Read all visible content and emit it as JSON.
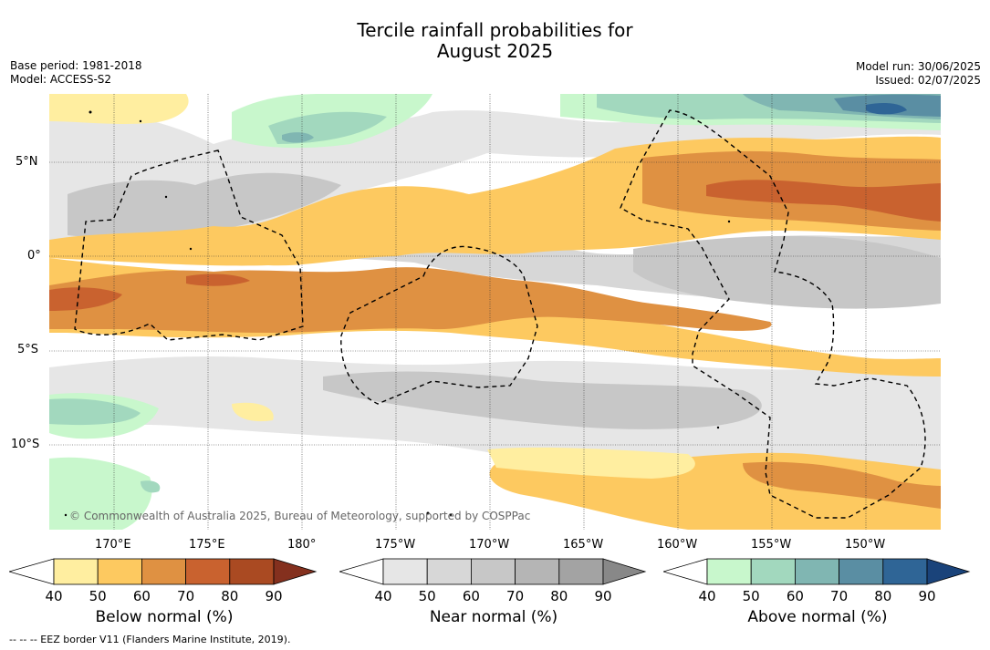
{
  "header": {
    "title_line1": "Tercile rainfall probabilities for",
    "title_line2": "August 2025",
    "base_period": "Base period: 1981-2018",
    "model": "Model: ACCESS-S2",
    "model_run": "Model run: 30/06/2025",
    "issued": "Issued: 02/07/2025"
  },
  "map": {
    "lat_labels": [
      "5°N",
      "0°",
      "5°S",
      "10°S"
    ],
    "lon_labels": [
      "170°E",
      "175°E",
      "180°",
      "175°W",
      "170°W",
      "165°W",
      "160°W",
      "155°W",
      "150°W"
    ],
    "copyright": "© Commonwealth of Australia 2025, Bureau of Meteorology, supported by COSPPac",
    "colors": {
      "below": [
        "#ffeea0",
        "#fdc960",
        "#df9142",
        "#c9622f",
        "#aa4a22",
        "#84301e"
      ],
      "near": [
        "#e6e6e6",
        "#d7d7d7",
        "#c7c7c7",
        "#b5b5b5",
        "#a3a3a3",
        "#888888"
      ],
      "above": [
        "#c8f7cc",
        "#a2d8be",
        "#80b6b2",
        "#5a8ea3",
        "#2f6596",
        "#1a437a"
      ]
    }
  },
  "colorbars": {
    "ticks": [
      "40",
      "50",
      "60",
      "70",
      "80",
      "90"
    ],
    "below_label": "Below normal (%)",
    "near_label": "Near normal (%)",
    "above_label": "Above normal (%)"
  },
  "footer": {
    "eez_note": "--  --  -- EEZ border V11 (Flanders Marine Institute, 2019)."
  }
}
